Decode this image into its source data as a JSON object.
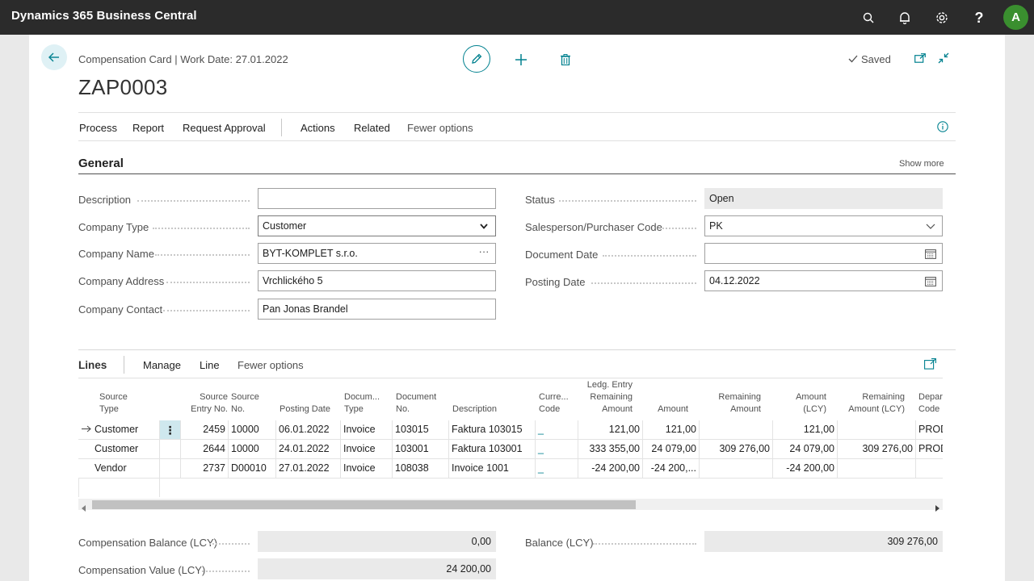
{
  "app": {
    "title": "Dynamics 365 Business Central",
    "avatar_letter": "A"
  },
  "topbar_icons": [
    "search-icon",
    "bell-icon",
    "gear-icon",
    "help-icon"
  ],
  "header": {
    "caption": "Compensation Card | Work Date: 27.01.2022",
    "title": "ZAP0003",
    "saved_label": "Saved"
  },
  "actions": {
    "process": "Process",
    "report": "Report",
    "request_approval": "Request Approval",
    "actions": "Actions",
    "related": "Related",
    "fewer_options": "Fewer options"
  },
  "general": {
    "title": "General",
    "show_more": "Show more",
    "fields": {
      "description": {
        "label": "Description",
        "value": ""
      },
      "company_type": {
        "label": "Company Type",
        "value": "Customer"
      },
      "company_name": {
        "label": "Company Name",
        "value": "BYT-KOMPLET s.r.o."
      },
      "company_address": {
        "label": "Company Address",
        "value": "Vrchlického 5"
      },
      "company_contact": {
        "label": "Company Contact",
        "value": "Pan Jonas Brandel"
      },
      "status": {
        "label": "Status",
        "value": "Open"
      },
      "salesperson": {
        "label": "Salesperson/Purchaser Code",
        "value": "PK"
      },
      "document_date": {
        "label": "Document Date",
        "value": ""
      },
      "posting_date": {
        "label": "Posting Date",
        "value": "04.12.2022"
      }
    }
  },
  "lines": {
    "title": "Lines",
    "manage": "Manage",
    "line": "Line",
    "fewer_options": "Fewer options",
    "headers": {
      "source_type": "Source Type",
      "source_entry_no": "Source Entry No.",
      "source_no": "Source No.",
      "posting_date": "Posting Date",
      "document_type": "Docum... Type",
      "document_no": "Document No.",
      "description": "Description",
      "currency_code": "Curre... Code",
      "ledg_remaining": "Ledg. Entry Remaining Amount",
      "amount": "Amount",
      "remaining_amount": "Remaining Amount",
      "amount_lcy": "Amount (LCY)",
      "remaining_amount_lcy": "Remaining Amount (LCY)",
      "department_code": "Depar Code"
    },
    "rows": [
      {
        "source_type": "Customer",
        "source_entry_no": "2459",
        "source_no": "10000",
        "posting_date": "06.01.2022",
        "document_type": "Invoice",
        "document_no": "103015",
        "description": "Faktura 103015",
        "currency_code": "_",
        "ledg_remaining": "121,00",
        "amount": "121,00",
        "remaining_amount": "",
        "amount_lcy": "121,00",
        "remaining_amount_lcy": "",
        "department_code": "PROD"
      },
      {
        "source_type": "Customer",
        "source_entry_no": "2644",
        "source_no": "10000",
        "posting_date": "24.01.2022",
        "document_type": "Invoice",
        "document_no": "103001",
        "description": "Faktura 103001",
        "currency_code": "_",
        "ledg_remaining": "333 355,00",
        "amount": "24 079,00",
        "remaining_amount": "309 276,00",
        "amount_lcy": "24 079,00",
        "remaining_amount_lcy": "309 276,00",
        "department_code": "PROD"
      },
      {
        "source_type": "Vendor",
        "source_entry_no": "2737",
        "source_no": "D00010",
        "posting_date": "27.01.2022",
        "document_type": "Invoice",
        "document_no": "108038",
        "description": "Invoice 1001",
        "currency_code": "_",
        "ledg_remaining": "-24 200,00",
        "amount": "-24 200,...",
        "remaining_amount": "",
        "amount_lcy": "-24 200,00",
        "remaining_amount_lcy": "",
        "department_code": ""
      }
    ]
  },
  "totals": {
    "compensation_balance": {
      "label": "Compensation Balance (LCY)",
      "value": "0,00"
    },
    "compensation_value": {
      "label": "Compensation Value (LCY)",
      "value": "24 200,00"
    },
    "balance": {
      "label": "Balance (LCY)",
      "value": "309 276,00"
    }
  }
}
